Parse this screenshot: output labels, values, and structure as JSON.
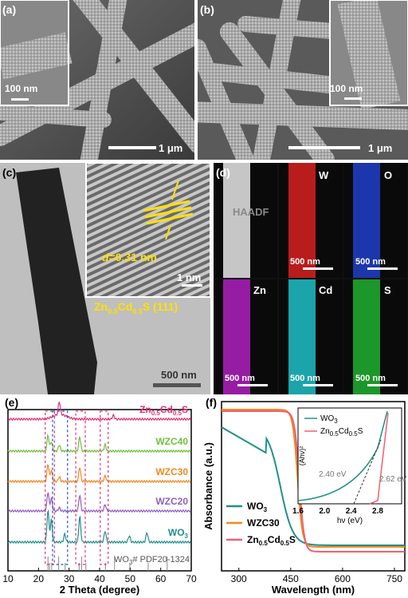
{
  "panels": {
    "a": {
      "label": "(a)",
      "inset_scale": "100 nm",
      "scale": "1 μm"
    },
    "b": {
      "label": "(b)",
      "inset_scale": "100 nm",
      "scale": "1 μm"
    },
    "c": {
      "label": "(c)",
      "d_label": "d",
      "d_value": "=0.31 nm",
      "inset_scale": "1 nm",
      "phase": "Zn",
      "phase_sub1": "0.5",
      "phase_mid": "Cd",
      "phase_sub2": "0.5",
      "phase_end": "S (111)",
      "scale": "500 nm"
    },
    "d": {
      "label": "(d)",
      "maps": [
        {
          "name": "HAADF",
          "scale": "",
          "color": "#e8e8e8"
        },
        {
          "name": "W",
          "scale": "",
          "color": "#d82020"
        },
        {
          "name": "O",
          "scale": "500 nm",
          "color": "#2040c8"
        },
        {
          "name": "Zn",
          "scale": "500 nm",
          "color": "#b020c0"
        },
        {
          "name": "Cd",
          "scale": "500 nm",
          "color": "#20c0c8"
        },
        {
          "name": "S",
          "scale": "500 nm",
          "color": "#20b030"
        }
      ],
      "w_scale": "500 nm"
    }
  },
  "chart_data": [
    {
      "type": "line",
      "panel": "(e)",
      "xlabel": "2 Theta (degree)",
      "ylabel": "Intensity (a.u.)",
      "xlim": [
        10,
        70
      ],
      "xticks": [
        10,
        20,
        30,
        40,
        50,
        60,
        70
      ],
      "series": [
        {
          "name": "Zn0.5Cd0.5S",
          "label_main": "Zn",
          "label_s1": "0.5",
          "label_mid": "Cd",
          "label_s2": "0.5",
          "label_end": "S",
          "color": "#e0307a",
          "peaks": [
            [
              26.8,
              16
            ],
            [
              44.5,
              5
            ]
          ],
          "offset": 5
        },
        {
          "name": "WZC40",
          "label_main": "WZC40",
          "color": "#70c040",
          "peaks": [
            [
              23.1,
              20
            ],
            [
              24.2,
              12
            ],
            [
              26.8,
              8
            ],
            [
              33.5,
              18
            ],
            [
              41.8,
              8
            ]
          ],
          "offset": 4
        },
        {
          "name": "WZC30",
          "label_main": "WZC30",
          "color": "#f08a20",
          "peaks": [
            [
              23.1,
              22
            ],
            [
              24.2,
              14
            ],
            [
              26.8,
              6
            ],
            [
              33.5,
              18
            ],
            [
              41.8,
              7
            ]
          ],
          "offset": 3
        },
        {
          "name": "WZC20",
          "label_main": "WZC20",
          "color": "#9060c0",
          "peaks": [
            [
              23.1,
              24
            ],
            [
              24.2,
              16
            ],
            [
              26.8,
              4
            ],
            [
              33.5,
              20
            ],
            [
              41.8,
              8
            ]
          ],
          "offset": 2
        },
        {
          "name": "WO3",
          "label_main": "WO",
          "label_s1": "3",
          "color": "#20908a",
          "peaks": [
            [
              23.1,
              40
            ],
            [
              24.2,
              28
            ],
            [
              28.6,
              10
            ],
            [
              33.5,
              32
            ],
            [
              41.8,
              14
            ],
            [
              49.7,
              8
            ],
            [
              55.5,
              12
            ]
          ],
          "offset": 1
        }
      ],
      "reference": {
        "label": "WO3# PDF20-1324",
        "label_main": "WO",
        "label_s1": "3",
        "label_end": "# PDF20-1324",
        "positions": [
          23.1,
          23.6,
          24.3,
          26.6,
          28.7,
          33.3,
          34.1,
          35.5,
          41.9,
          44.9,
          49.9,
          55.9,
          62.1
        ]
      }
    },
    {
      "type": "line",
      "panel": "(f)",
      "xlabel": "Wavelength (nm)",
      "ylabel": "Absorbance (a.u.)",
      "xlim": [
        250,
        780
      ],
      "xticks": [
        300,
        450,
        600,
        750
      ],
      "series": [
        {
          "name": "WO3",
          "label_main": "WO",
          "label_s1": "3",
          "color": "#20908a",
          "edge": 420
        },
        {
          "name": "WZC30",
          "label_main": "WZC30",
          "color": "#f08a20",
          "edge": 470
        },
        {
          "name": "Zn0.5Cd0.5S",
          "label_main": "Zn",
          "label_s1": "0.5",
          "label_mid": "Cd",
          "label_s2": "0.5",
          "label_end": "S",
          "color": "#f06070",
          "edge": 475
        }
      ],
      "inset": {
        "xlabel": "hν (eV)",
        "ylabel": "(Ahν)²",
        "xticks": [
          1.6,
          2.0,
          2.4,
          2.8
        ],
        "annotations": [
          "2.40 eV",
          "2.62 eV"
        ],
        "legend": [
          {
            "name": "WO3",
            "label_main": "WO",
            "label_s1": "3",
            "color": "#20908a"
          },
          {
            "name": "Zn0.5Cd0.5S",
            "label_main": "Zn",
            "label_s1": "0.5",
            "label_mid": "Cd",
            "label_s2": "0.5",
            "label_end": "S",
            "color": "#f06070"
          }
        ]
      }
    }
  ]
}
